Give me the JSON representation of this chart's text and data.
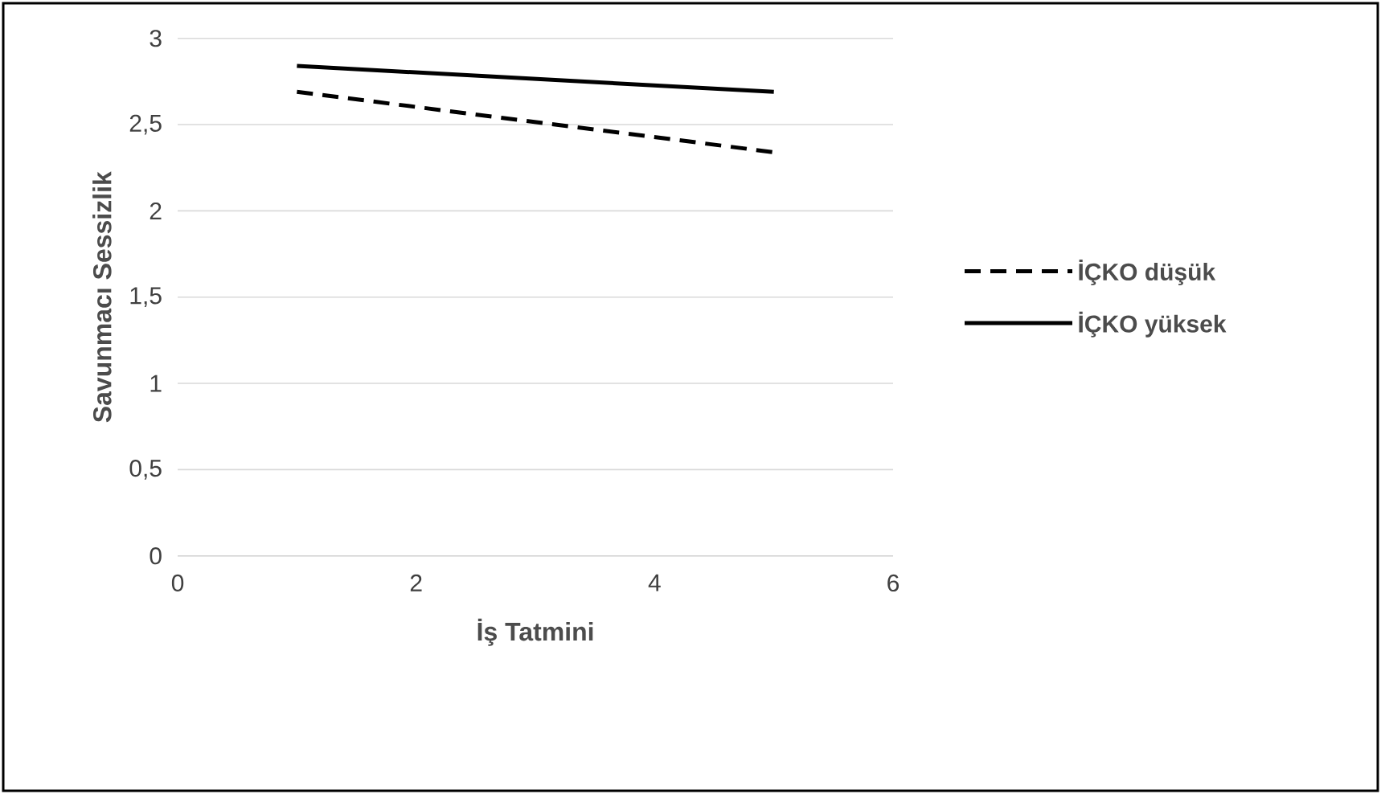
{
  "chart_data": {
    "type": "line",
    "xlabel": "İş Tatmini",
    "ylabel": "Savunmacı Sessizlik",
    "xlim": [
      0,
      6
    ],
    "xticks": [
      0,
      2,
      4,
      6
    ],
    "ylim": [
      0,
      3
    ],
    "yticks": [
      0,
      {
        "value": 0.5,
        "label": "0,5"
      },
      1,
      {
        "value": 1.5,
        "label": "1,5"
      },
      2,
      {
        "value": 2.5,
        "label": "2,5"
      },
      3
    ],
    "x": [
      1,
      5
    ],
    "grid": "y",
    "legend": "right",
    "series": [
      {
        "name": "İÇKO düşük",
        "color": "#000000",
        "line_style": "dashed",
        "values": [
          2.69,
          2.34
        ]
      },
      {
        "name": "İÇKO yüksek",
        "color": "#000000",
        "line_style": "solid",
        "values": [
          2.84,
          2.69
        ]
      }
    ]
  }
}
